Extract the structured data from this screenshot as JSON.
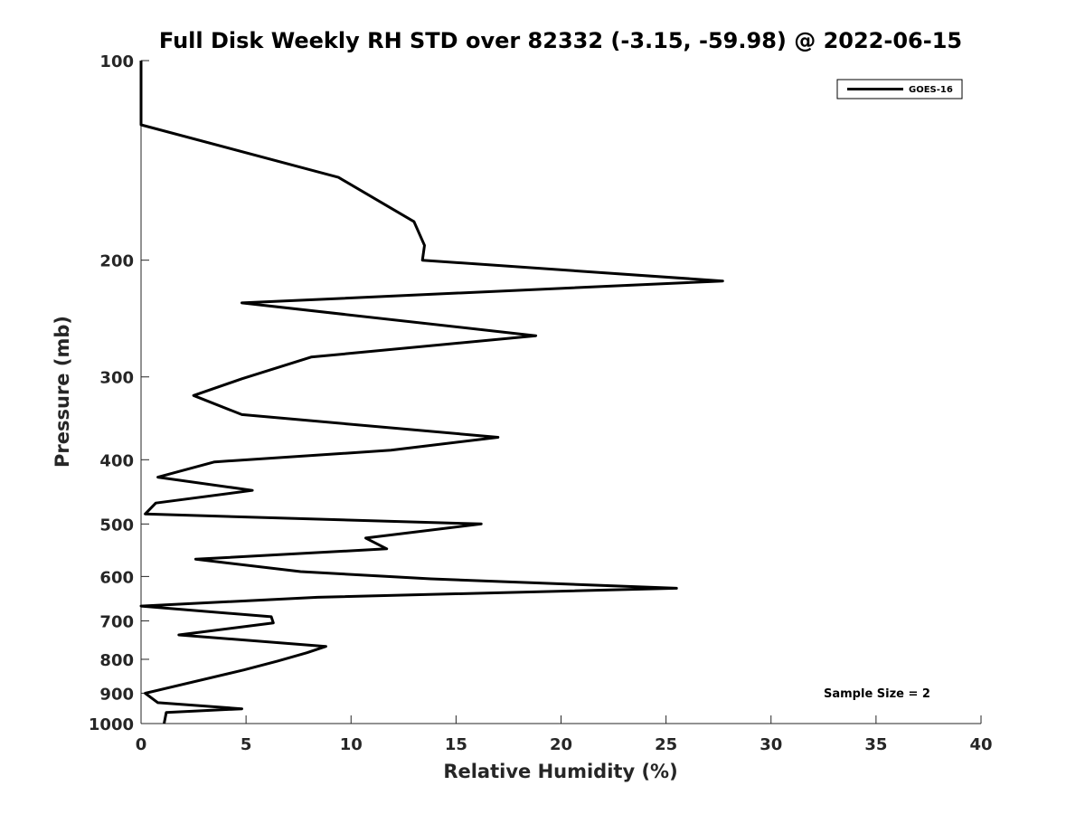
{
  "chart_data": {
    "type": "line",
    "title": "Full Disk Weekly RH STD over 82332 (-3.15, -59.98) @ 2022-06-15",
    "xlabel": "Relative Humidity (%)",
    "ylabel": "Pressure (mb)",
    "xlim": [
      0,
      40
    ],
    "ylim": [
      1000,
      100
    ],
    "yscale": "log",
    "grid": false,
    "x_ticks": [
      0,
      5,
      10,
      15,
      20,
      25,
      30,
      35,
      40
    ],
    "y_ticks": [
      100,
      200,
      300,
      400,
      500,
      600,
      700,
      800,
      900,
      1000
    ],
    "legend": {
      "position": "top-right",
      "entries": [
        "GOES-16"
      ]
    },
    "annotation": "Sample Size = 2",
    "series": [
      {
        "name": "GOES-16",
        "color": "#000000",
        "points": [
          [
            0,
            100
          ],
          [
            0,
            115
          ],
          [
            0,
            125
          ],
          [
            9.4,
            150
          ],
          [
            13.0,
            175
          ],
          [
            13.5,
            190
          ],
          [
            13.4,
            200
          ],
          [
            27.7,
            215
          ],
          [
            4.8,
            232
          ],
          [
            18.8,
            260
          ],
          [
            8.1,
            280
          ],
          [
            4.8,
            302
          ],
          [
            2.5,
            320
          ],
          [
            4.8,
            342
          ],
          [
            17.0,
            370
          ],
          [
            11.9,
            387
          ],
          [
            3.5,
            403
          ],
          [
            0.8,
            425
          ],
          [
            5.3,
            445
          ],
          [
            0.7,
            465
          ],
          [
            0.2,
            483
          ],
          [
            16.2,
            500
          ],
          [
            10.7,
            525
          ],
          [
            11.7,
            545
          ],
          [
            2.6,
            565
          ],
          [
            7.6,
            590
          ],
          [
            13.8,
            605
          ],
          [
            25.5,
            625
          ],
          [
            8.4,
            645
          ],
          [
            0,
            665
          ],
          [
            6.2,
            690
          ],
          [
            6.3,
            705
          ],
          [
            1.8,
            735
          ],
          [
            8.8,
            765
          ],
          [
            7.9,
            782
          ],
          [
            6.5,
            805
          ],
          [
            4.9,
            830
          ],
          [
            0.2,
            900
          ],
          [
            0.8,
            930
          ],
          [
            4.8,
            950
          ],
          [
            1.2,
            962
          ],
          [
            1.1,
            1000
          ]
        ]
      }
    ]
  }
}
